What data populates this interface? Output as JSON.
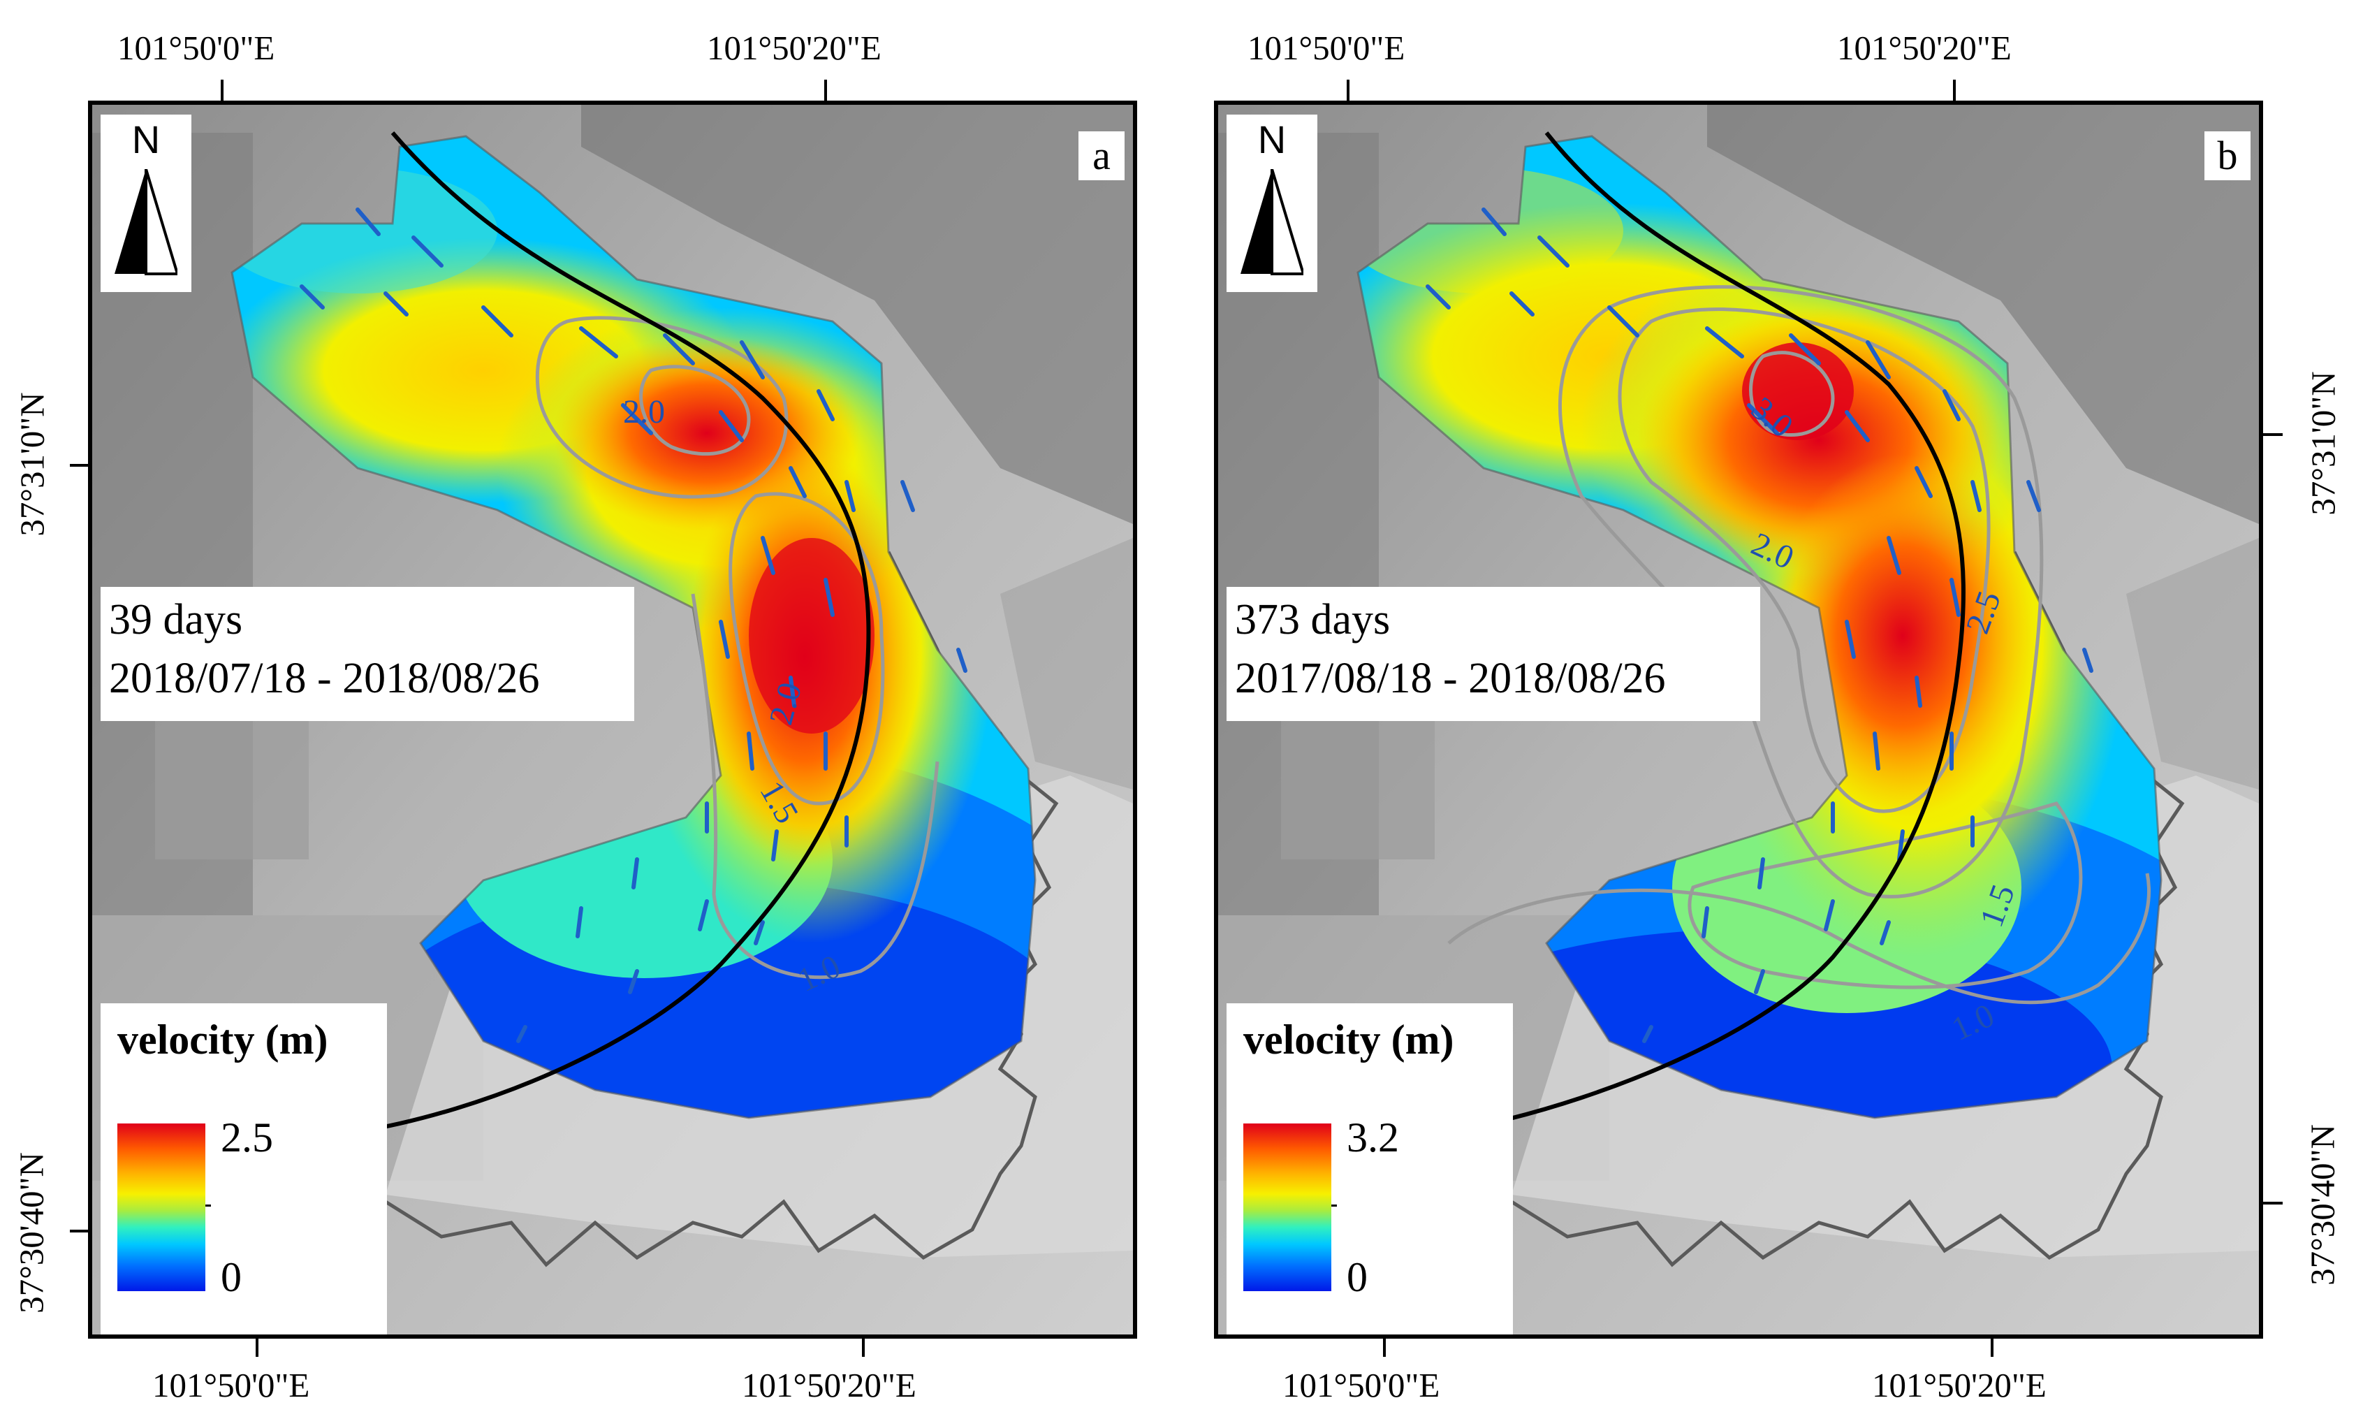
{
  "panels": [
    {
      "letter": "a",
      "north_label": "N",
      "duration": "39 days",
      "date_range": "2018/07/18 - 2018/08/26",
      "legend_title": "velocity (m)",
      "legend_max": "2.5",
      "legend_min": "0",
      "contour_labels": [
        "2.0",
        "2.0",
        "1.5",
        "1.0"
      ],
      "top_lon_labels": [
        "101°50'0\"E",
        "101°50'20\"E"
      ],
      "bottom_lon_labels": [
        "101°50'0\"E",
        "101°50'20\"E"
      ],
      "left_lat_labels": [
        "37°31'0\"N",
        "37°30'40\"N"
      ]
    },
    {
      "letter": "b",
      "north_label": "N",
      "duration": "373 days",
      "date_range": "2017/08/18 - 2018/08/26",
      "legend_title": "velocity (m)",
      "legend_max": "3.2",
      "legend_min": "0",
      "contour_labels": [
        "3.0",
        "2.0",
        "2.5",
        "1.5",
        "1.0"
      ],
      "top_lon_labels": [
        "101°50'0\"E",
        "101°50'20\"E"
      ],
      "bottom_lon_labels": [
        "101°50'0\"E",
        "101°50'20\"E"
      ],
      "right_lat_labels": [
        "37°31'0\"N",
        "37°30'40\"N"
      ]
    }
  ],
  "colors": {
    "velocity_high": "#e0001a",
    "velocity_mid": "#f7f000",
    "velocity_low": "#0018e8",
    "contour": "#9a9a9a",
    "flow_vectors": "#1f5fc8",
    "centerline": "#000000",
    "glacier_outline": "#5a5a5a"
  }
}
